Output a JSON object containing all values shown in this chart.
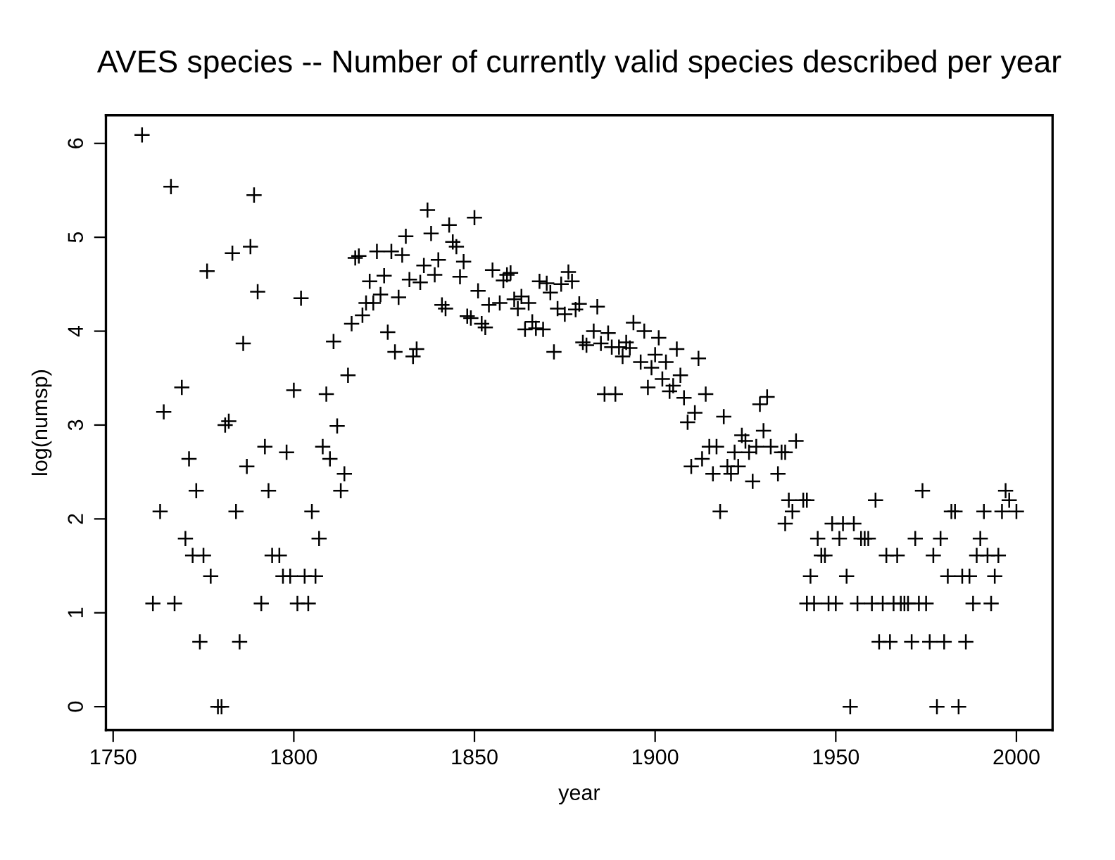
{
  "chart_data": {
    "type": "scatter",
    "title": "AVES species -- Number of currently valid species described per year",
    "xlabel": "year",
    "ylabel": "log(numsp)",
    "x": [
      1758,
      1766,
      1789,
      1788,
      1783,
      1776,
      1790,
      1802,
      1786,
      1811,
      1769,
      1800,
      1809,
      1764,
      1781,
      1782,
      1792,
      1798,
      1808,
      1810,
      1771,
      1787,
      1773,
      1793,
      1763,
      1784,
      1805,
      1770,
      1807,
      1772,
      1775,
      1794,
      1796,
      1777,
      1797,
      1799,
      1803,
      1806,
      1761,
      1767,
      1791,
      1801,
      1804,
      1774,
      1785,
      1779,
      1780,
      1837,
      1850,
      1843,
      1838,
      1831,
      1844,
      1845,
      1817,
      1818,
      1823,
      1827,
      1830,
      1836,
      1840,
      1847,
      1821,
      1825,
      1832,
      1835,
      1839,
      1846,
      1855,
      1859,
      1858,
      1860,
      1851,
      1868,
      1870,
      1871,
      1820,
      1822,
      1824,
      1829,
      1819,
      1816,
      1841,
      1842,
      1854,
      1857,
      1861,
      1863,
      1865,
      1862,
      1848,
      1849,
      1852,
      1853,
      1864,
      1866,
      1867,
      1869,
      1873,
      1826,
      1828,
      1833,
      1834,
      1872,
      1815,
      1812,
      1814,
      1813,
      1876,
      1874,
      1877,
      1875,
      1878,
      1879,
      1884,
      1880,
      1881,
      1883,
      1887,
      1885,
      1888,
      1890,
      1891,
      1892,
      1893,
      1894,
      1897,
      1901,
      1896,
      1899,
      1900,
      1903,
      1898,
      1902,
      1905,
      1904,
      1907,
      1906,
      1912,
      1908,
      1914,
      1911,
      1909,
      1886,
      1889,
      1919,
      1929,
      1931,
      1930,
      1924,
      1925,
      1915,
      1917,
      1913,
      1910,
      1922,
      1926,
      1928,
      1932,
      1935,
      1936,
      1916,
      1920,
      1921,
      1923,
      1927,
      1934,
      1918,
      1939,
      1937,
      1941,
      1942,
      1938,
      1936,
      1945,
      1951,
      1949,
      1952,
      1955,
      1957,
      1958,
      1959,
      1961,
      1974,
      1972,
      1979,
      1982,
      1983,
      1991,
      1996,
      2000,
      1997,
      1998,
      1990,
      1946,
      1947,
      1964,
      1967,
      1977,
      1989,
      1992,
      1995,
      1943,
      1953,
      1981,
      1985,
      1987,
      1994,
      1942,
      1944,
      1948,
      1950,
      1956,
      1960,
      1963,
      1966,
      1968,
      1969,
      1970,
      1973,
      1975,
      1988,
      1993,
      1962,
      1965,
      1971,
      1976,
      1980,
      1986,
      1954,
      1978,
      1984
    ],
    "values": [
      6.09,
      5.54,
      5.45,
      4.9,
      4.83,
      4.64,
      4.42,
      4.35,
      3.87,
      3.89,
      3.4,
      3.37,
      3.33,
      3.14,
      3.0,
      3.04,
      2.77,
      2.71,
      2.77,
      2.64,
      2.64,
      2.56,
      2.3,
      2.3,
      2.08,
      2.08,
      2.08,
      1.79,
      1.79,
      1.61,
      1.61,
      1.61,
      1.61,
      1.39,
      1.39,
      1.39,
      1.39,
      1.39,
      1.1,
      1.1,
      1.1,
      1.1,
      1.1,
      0.69,
      0.69,
      0,
      0,
      5.29,
      5.21,
      5.13,
      5.04,
      5.01,
      4.95,
      4.9,
      4.78,
      4.8,
      4.85,
      4.85,
      4.81,
      4.7,
      4.76,
      4.74,
      4.53,
      4.59,
      4.55,
      4.52,
      4.6,
      4.58,
      4.65,
      4.6,
      4.54,
      4.62,
      4.43,
      4.53,
      4.51,
      4.41,
      4.3,
      4.3,
      4.39,
      4.36,
      4.17,
      4.08,
      4.28,
      4.24,
      4.28,
      4.3,
      4.34,
      4.37,
      4.3,
      4.24,
      4.16,
      4.14,
      4.08,
      4.04,
      4.02,
      4.1,
      4.03,
      4.02,
      4.24,
      3.99,
      3.78,
      3.73,
      3.81,
      3.78,
      3.53,
      2.99,
      2.48,
      2.3,
      4.63,
      4.5,
      4.53,
      4.18,
      4.23,
      4.29,
      4.26,
      3.88,
      3.85,
      4.0,
      3.98,
      3.87,
      3.83,
      3.83,
      3.73,
      3.88,
      3.82,
      4.09,
      4.0,
      3.93,
      3.67,
      3.61,
      3.75,
      3.67,
      3.4,
      3.49,
      3.42,
      3.36,
      3.53,
      3.81,
      3.71,
      3.29,
      3.33,
      3.13,
      3.03,
      3.33,
      3.33,
      3.09,
      3.22,
      3.3,
      2.94,
      2.89,
      2.83,
      2.77,
      2.77,
      2.64,
      2.56,
      2.71,
      2.71,
      2.77,
      2.77,
      2.71,
      2.71,
      2.48,
      2.56,
      2.48,
      2.56,
      2.4,
      2.48,
      2.08,
      2.83,
      2.2,
      2.2,
      2.2,
      2.08,
      1.95,
      1.79,
      1.79,
      1.95,
      1.95,
      1.95,
      1.79,
      1.79,
      1.79,
      2.2,
      2.3,
      1.79,
      1.79,
      2.08,
      2.08,
      2.08,
      2.08,
      2.08,
      2.3,
      2.2,
      1.79,
      1.61,
      1.61,
      1.61,
      1.61,
      1.61,
      1.61,
      1.61,
      1.61,
      1.39,
      1.39,
      1.39,
      1.39,
      1.39,
      1.39,
      1.1,
      1.1,
      1.1,
      1.1,
      1.1,
      1.1,
      1.1,
      1.1,
      1.1,
      1.1,
      1.1,
      1.1,
      1.1,
      1.1,
      1.1,
      0.69,
      0.69,
      0.69,
      0.69,
      0.69,
      0.69,
      0,
      0,
      0
    ],
    "color": "#000000",
    "marker": "cross",
    "grid": false,
    "legend": false,
    "xlim": [
      1748,
      2010
    ],
    "ylim": [
      -0.25,
      6.3
    ],
    "xticks": [
      1750,
      1800,
      1850,
      1900,
      1950,
      2000
    ],
    "yticks": [
      0,
      1,
      2,
      3,
      4,
      5,
      6
    ]
  }
}
